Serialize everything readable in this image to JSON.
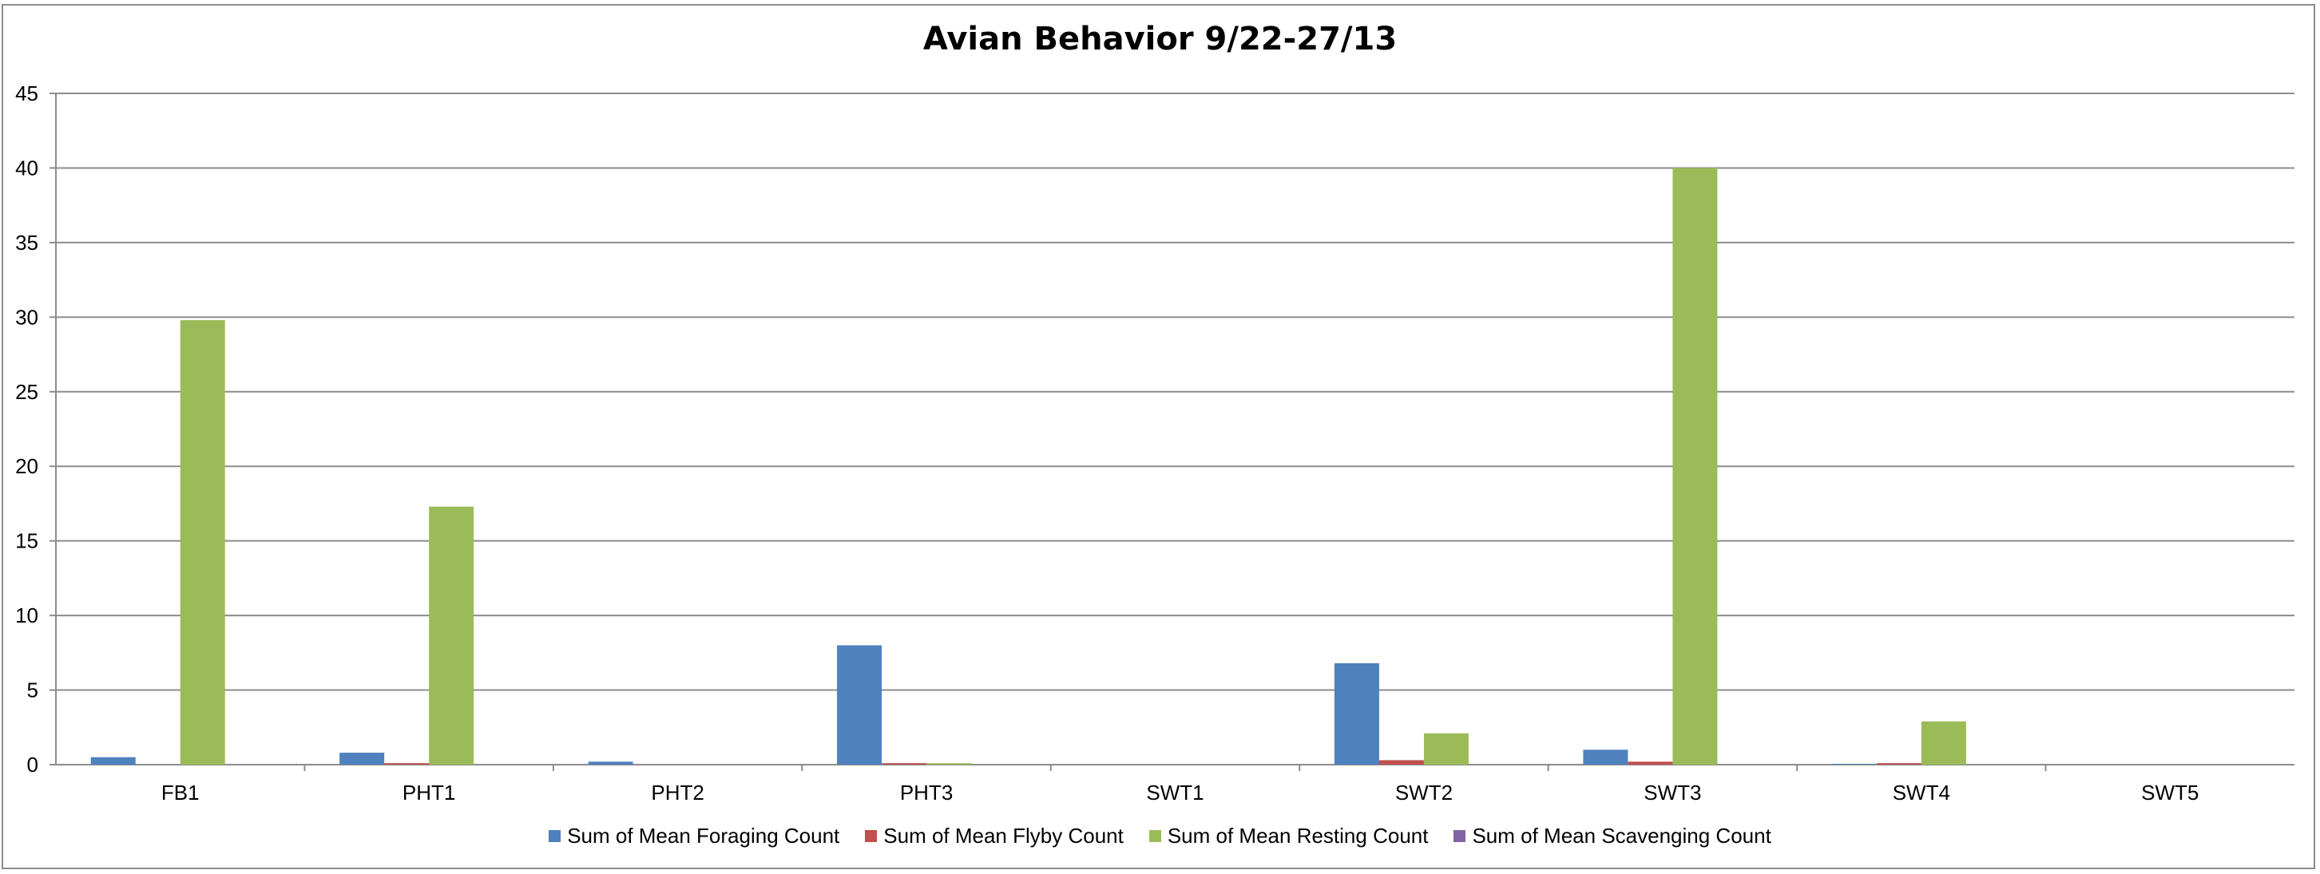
{
  "chart_data": {
    "type": "bar",
    "title": "Avian Behavior 9/22-27/13",
    "xlabel": "",
    "ylabel": "",
    "ylim": [
      0,
      45
    ],
    "yticks": [
      0,
      5,
      10,
      15,
      20,
      25,
      30,
      35,
      40,
      45
    ],
    "grid": true,
    "legend_position": "bottom",
    "categories": [
      "FB1",
      "PHT1",
      "PHT2",
      "PHT3",
      "SWT1",
      "SWT2",
      "SWT3",
      "SWT4",
      "SWT5"
    ],
    "series": [
      {
        "name": "Sum of Mean Foraging Count",
        "color": "#4f81bd",
        "values": [
          0.5,
          0.8,
          0.2,
          8.0,
          0,
          6.8,
          1.0,
          0.05,
          0
        ]
      },
      {
        "name": "Sum of Mean Flyby Count",
        "color": "#c0504d",
        "values": [
          0,
          0.1,
          0,
          0.1,
          0,
          0.3,
          0.2,
          0.1,
          0
        ]
      },
      {
        "name": "Sum of Mean Resting Count",
        "color": "#9bbb59",
        "values": [
          29.8,
          17.3,
          0,
          0.1,
          0,
          2.1,
          40.0,
          2.9,
          0
        ]
      },
      {
        "name": "Sum of Mean Scavenging Count",
        "color": "#8064a2",
        "values": [
          0,
          0,
          0,
          0,
          0,
          0,
          0,
          0,
          0
        ]
      }
    ]
  }
}
